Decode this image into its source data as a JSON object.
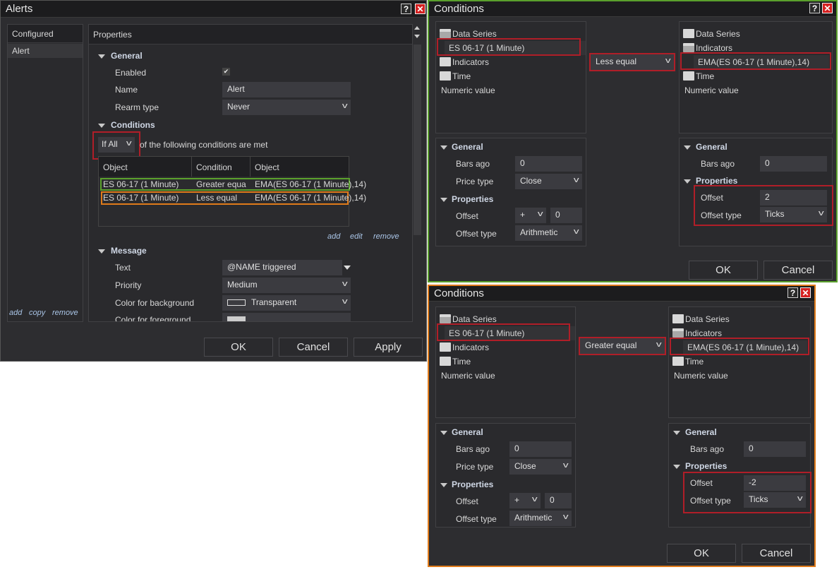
{
  "alerts": {
    "title": "Alerts",
    "configured_header": "Configured",
    "configured_items": [
      "Alert"
    ],
    "configured_links": {
      "add": "add",
      "copy": "copy",
      "remove": "remove"
    },
    "properties_header": "Properties",
    "general": {
      "section": "General",
      "enabled_label": "Enabled",
      "enabled": true,
      "name_label": "Name",
      "name_value": "Alert",
      "rearm_label": "Rearm type",
      "rearm_value": "Never"
    },
    "conditions": {
      "section": "Conditions",
      "mode_value": "If All",
      "mode_suffix": "of the following conditions are met",
      "columns": [
        "Object",
        "Condition",
        "Object"
      ],
      "rows": [
        [
          "ES 06-17 (1 Minute)",
          "Greater equa",
          "EMA(ES 06-17 (1 Minute),14)"
        ],
        [
          "ES 06-17 (1 Minute)",
          "Less equal",
          "EMA(ES 06-17 (1 Minute),14)"
        ]
      ],
      "links": {
        "add": "add",
        "edit": "edit",
        "remove": "remove"
      }
    },
    "message": {
      "section": "Message",
      "text_label": "Text",
      "text_value": "@NAME triggered",
      "priority_label": "Priority",
      "priority_value": "Medium",
      "bg_label": "Color for background",
      "bg_value": "Transparent",
      "fg_label": "Color for foreground"
    },
    "buttons": {
      "ok": "OK",
      "cancel": "Cancel",
      "apply": "Apply"
    },
    "highlight_colors": {
      "red": "#b01e28",
      "green": "#5aa02c",
      "orange": "#e07b1a"
    }
  },
  "condition_dialogs": [
    {
      "title": "Conditions",
      "border_color": "#5aa02c",
      "left_tree": [
        {
          "label": "Data Series",
          "icon": "folder-open"
        },
        {
          "label": "ES 06-17 (1 Minute)",
          "icon": "none",
          "selected": true
        },
        {
          "label": "Indicators",
          "icon": "folder"
        },
        {
          "label": "Time",
          "icon": "folder"
        },
        {
          "label": "Numeric value",
          "icon": "none"
        }
      ],
      "condition": "Less equal",
      "right_tree": [
        {
          "label": "Data Series",
          "icon": "folder"
        },
        {
          "label": "Indicators",
          "icon": "folder-open"
        },
        {
          "label": "EMA(ES 06-17 (1 Minute),14)",
          "icon": "none",
          "selected": true
        },
        {
          "label": "Time",
          "icon": "folder"
        },
        {
          "label": "Numeric value",
          "icon": "none"
        }
      ],
      "left_props": {
        "general": "General",
        "bars_ago_label": "Bars ago",
        "bars_ago": "0",
        "price_type_label": "Price type",
        "price_type": "Close",
        "properties": "Properties",
        "offset_label": "Offset",
        "offset_sign": "+",
        "offset": "0",
        "offset_type_label": "Offset type",
        "offset_type": "Arithmetic"
      },
      "right_props": {
        "general": "General",
        "bars_ago_label": "Bars ago",
        "bars_ago": "0",
        "properties": "Properties",
        "offset_label": "Offset",
        "offset": "2",
        "offset_type_label": "Offset type",
        "offset_type": "Ticks"
      },
      "ok": "OK",
      "cancel": "Cancel"
    },
    {
      "title": "Conditions",
      "border_color": "#e07b1a",
      "left_tree": [
        {
          "label": "Data Series",
          "icon": "folder-open"
        },
        {
          "label": "ES 06-17 (1 Minute)",
          "icon": "none",
          "selected": true
        },
        {
          "label": "Indicators",
          "icon": "folder"
        },
        {
          "label": "Time",
          "icon": "folder"
        },
        {
          "label": "Numeric value",
          "icon": "none"
        }
      ],
      "condition": "Greater equal",
      "right_tree": [
        {
          "label": "Data Series",
          "icon": "folder"
        },
        {
          "label": "Indicators",
          "icon": "folder-open"
        },
        {
          "label": "EMA(ES 06-17 (1 Minute),14)",
          "icon": "none",
          "selected": true
        },
        {
          "label": "Time",
          "icon": "folder"
        },
        {
          "label": "Numeric value",
          "icon": "none"
        }
      ],
      "left_props": {
        "general": "General",
        "bars_ago_label": "Bars ago",
        "bars_ago": "0",
        "price_type_label": "Price type",
        "price_type": "Close",
        "properties": "Properties",
        "offset_label": "Offset",
        "offset_sign": "+",
        "offset": "0",
        "offset_type_label": "Offset type",
        "offset_type": "Arithmetic"
      },
      "right_props": {
        "general": "General",
        "bars_ago_label": "Bars ago",
        "bars_ago": "0",
        "properties": "Properties",
        "offset_label": "Offset",
        "offset": "-2",
        "offset_type_label": "Offset type",
        "offset_type": "Ticks"
      },
      "ok": "OK",
      "cancel": "Cancel"
    }
  ]
}
